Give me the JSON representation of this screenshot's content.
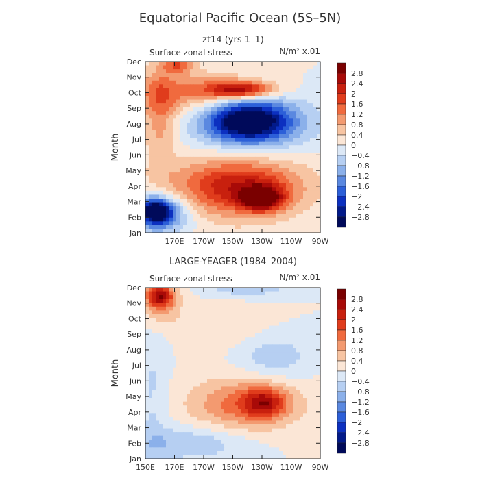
{
  "title": "Equatorial Pacific Ocean (5S–5N)",
  "colorbar": {
    "labels": [
      "2.8",
      "2.4",
      "2",
      "1.6",
      "1.2",
      "0.8",
      "0.4",
      "0",
      "−0.4",
      "−0.8",
      "−1.2",
      "−1.6",
      "−2",
      "−2.4",
      "−2.8"
    ],
    "colors": [
      "#7a0000",
      "#a80a08",
      "#c8200e",
      "#e03c1c",
      "#f06a3e",
      "#f39a70",
      "#f7c4a2",
      "#fbe6d6",
      "#dce8f6",
      "#b6cff2",
      "#8bb0ea",
      "#5a88e0",
      "#2c5fd8",
      "#0c30c0",
      "#021a8a",
      "#000a5a"
    ]
  },
  "chart_data": [
    {
      "type": "heatmap",
      "subtitle": "zt14 (yrs 1–1)",
      "panel_title": "Surface zonal stress",
      "units": "N/m² x.01",
      "ylabel": "Month",
      "y_ticks": [
        "Jan",
        "Feb",
        "Mar",
        "Apr",
        "May",
        "Jun",
        "Jul",
        "Aug",
        "Sep",
        "Oct",
        "Nov",
        "Dec"
      ],
      "x_ticks": [
        "170E",
        "170W",
        "150W",
        "130W",
        "110W",
        "90W"
      ],
      "x_range": [
        150,
        270
      ],
      "y_range": [
        0,
        11
      ],
      "blobs": [
        {
          "x": 157,
          "y": 1.4,
          "rx": 12,
          "ry": 0.9,
          "value": -2.8
        },
        {
          "x": 162,
          "y": 1.2,
          "rx": 22,
          "ry": 1.3,
          "value": -1.6
        },
        {
          "x": 230,
          "y": 2.2,
          "rx": 15,
          "ry": 0.8,
          "value": 2.8
        },
        {
          "x": 215,
          "y": 3.0,
          "rx": 45,
          "ry": 1.8,
          "value": 1.6
        },
        {
          "x": 210,
          "y": 2.8,
          "rx": 55,
          "ry": 2.6,
          "value": 0.8
        },
        {
          "x": 220,
          "y": 7.2,
          "rx": 30,
          "ry": 1.4,
          "value": -2.8
        },
        {
          "x": 225,
          "y": 7.0,
          "rx": 45,
          "ry": 2.0,
          "value": -1.2
        },
        {
          "x": 215,
          "y": 9.2,
          "rx": 25,
          "ry": 0.6,
          "value": 2.4
        },
        {
          "x": 180,
          "y": 9.0,
          "rx": 50,
          "ry": 1.5,
          "value": 1.2
        },
        {
          "x": 160,
          "y": 7.5,
          "rx": 12,
          "ry": 3.5,
          "value": 1.0
        },
        {
          "x": 172,
          "y": 10.8,
          "rx": 12,
          "ry": 0.6,
          "value": 1.4
        }
      ],
      "value_range": [
        -2.8,
        2.8
      ]
    },
    {
      "type": "heatmap",
      "subtitle": "LARGE‐YEAGER (1984–2004)",
      "panel_title": "Surface zonal stress",
      "units": "N/m² x.01",
      "ylabel": "Month",
      "y_ticks": [
        "Jan",
        "Feb",
        "Mar",
        "Apr",
        "May",
        "Jun",
        "Jul",
        "Aug",
        "Sep",
        "Oct",
        "Nov",
        "Dec"
      ],
      "x_ticks": [
        "150E",
        "170E",
        "170W",
        "150W",
        "130W",
        "110W",
        "90W"
      ],
      "x_range": [
        150,
        270
      ],
      "y_range": [
        0,
        11
      ],
      "blobs": [
        {
          "x": 160,
          "y": 10.5,
          "rx": 10,
          "ry": 0.8,
          "value": 2.0
        },
        {
          "x": 160,
          "y": 10.0,
          "rx": 14,
          "ry": 1.5,
          "value": 1.0
        },
        {
          "x": 232,
          "y": 3.6,
          "rx": 15,
          "ry": 1.0,
          "value": 1.6
        },
        {
          "x": 220,
          "y": 3.5,
          "rx": 35,
          "ry": 1.6,
          "value": 1.0
        },
        {
          "x": 215,
          "y": 3.5,
          "rx": 50,
          "ry": 2.4,
          "value": 0.5
        },
        {
          "x": 155,
          "y": 4.0,
          "rx": 12,
          "ry": 5.0,
          "value": -0.5
        },
        {
          "x": 180,
          "y": 1.0,
          "rx": 45,
          "ry": 1.2,
          "value": -0.8
        },
        {
          "x": 238,
          "y": 6.5,
          "rx": 28,
          "ry": 1.6,
          "value": -0.7
        },
        {
          "x": 220,
          "y": 11.0,
          "rx": 30,
          "ry": 0.6,
          "value": -0.8
        },
        {
          "x": 200,
          "y": 8.5,
          "rx": 35,
          "ry": 1.5,
          "value": 0.4
        }
      ],
      "value_range": [
        -2.8,
        2.8
      ]
    }
  ]
}
